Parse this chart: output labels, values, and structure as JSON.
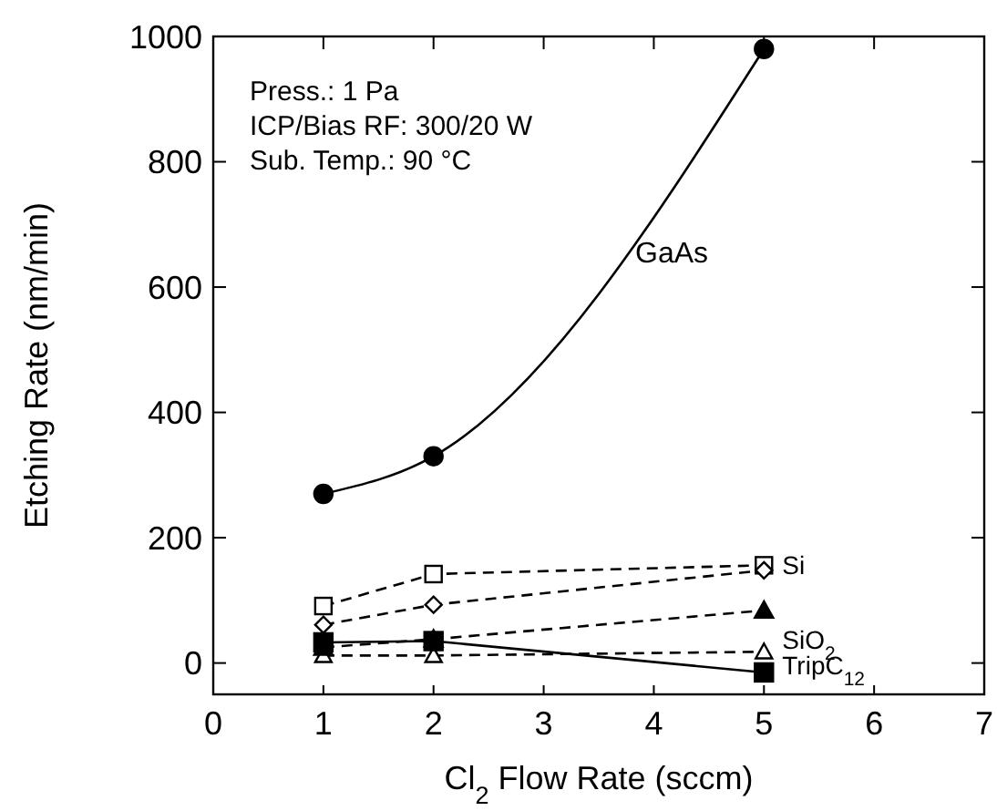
{
  "chart_data": {
    "type": "line",
    "xlabel": "Cl$_{2}$ Flow Rate (sccm)",
    "ylabel": "Etching Rate (nm/min)",
    "x": [
      1,
      2,
      5
    ],
    "xlim": [
      0,
      7
    ],
    "xticks": [
      0,
      1,
      2,
      3,
      4,
      5,
      6,
      7
    ],
    "ylim": [
      -50,
      1000
    ],
    "yticks": [
      0,
      200,
      400,
      600,
      800,
      1000
    ],
    "grid": false,
    "legend": false,
    "annotations": [
      "Press.: 1 Pa",
      "ICP/Bias RF: 300/20 W",
      "Sub. Temp.: 90 °C"
    ],
    "series": [
      {
        "name": "GaAs",
        "color": "#000000",
        "values": [
          270,
          330,
          980
        ],
        "marker": "circle",
        "line_style": "solid"
      },
      {
        "name": "Si",
        "color": "#000000",
        "values": [
          91,
          142,
          156
        ],
        "marker": "square",
        "line_style": "dashed"
      },
      {
        "color": "#000000",
        "values": [
          61,
          93,
          148
        ],
        "marker": "diamond",
        "line_style": "dashed"
      },
      {
        "name": "SiO$_{2}$",
        "color": "#000000",
        "values": [
          12,
          12,
          18
        ],
        "marker": "triangle",
        "line_style": "dashed"
      },
      {
        "name": "TripC$_{12}$",
        "color": "#000000",
        "values": [
          33,
          35,
          -15
        ],
        "marker": "square",
        "line_style": "solid"
      },
      {
        "color": "#000000",
        "values": [
          25,
          38,
          84
        ],
        "marker": "triangle",
        "line_style": "dashed"
      }
    ]
  }
}
